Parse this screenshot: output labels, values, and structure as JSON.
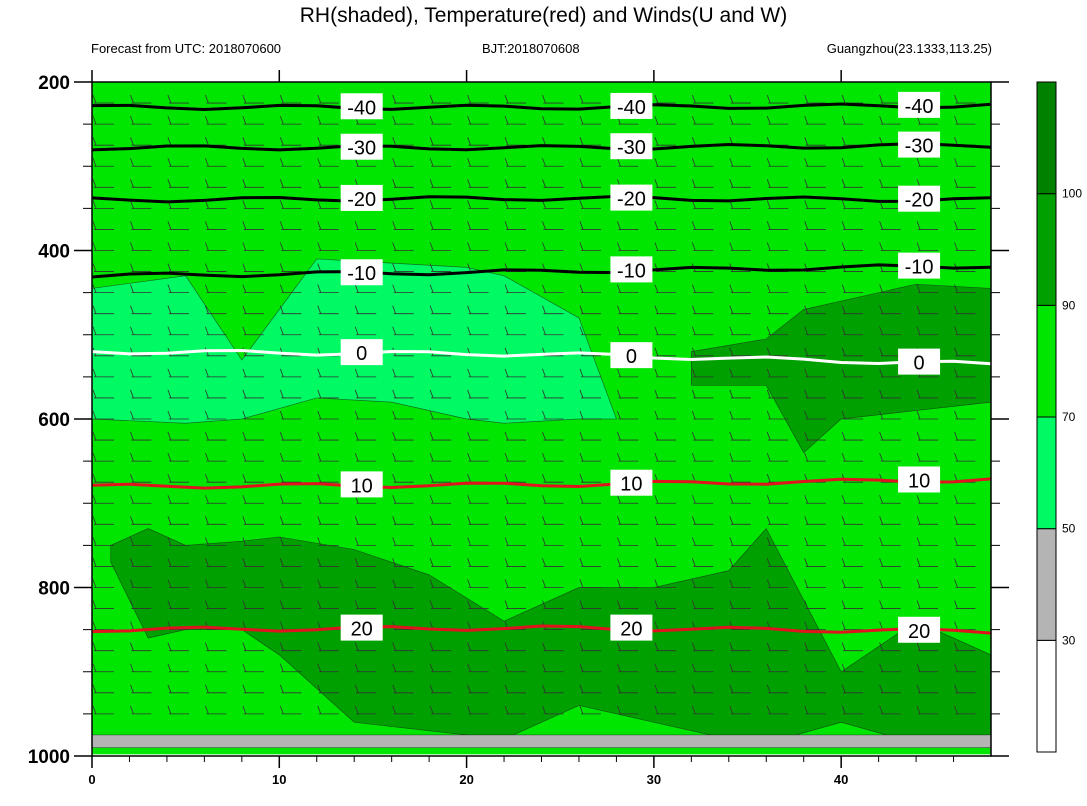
{
  "header": {
    "title": "RH(shaded), Temperature(red) and Winds(U and W)",
    "left_info": "Forecast from UTC: 2018070600",
    "center_info": "BJT:2018070608",
    "right_info": "Guangzhou(23.1333,113.25)"
  },
  "chart_data": {
    "type": "heatmap",
    "title": "RH(shaded), Temperature(red) and Winds(U and W)",
    "x": {
      "range": [
        0,
        48
      ],
      "ticks": [
        0,
        10,
        20,
        30,
        40
      ],
      "tick_labels": [
        "0",
        "10",
        "20",
        "30",
        "40"
      ]
    },
    "y": {
      "range": [
        1000,
        200
      ],
      "ticks": [
        200,
        400,
        600,
        800,
        1000
      ],
      "tick_labels": [
        "200",
        "400",
        "600",
        "800",
        "1000"
      ],
      "inverted": true
    },
    "colorbar": {
      "levels": [
        30,
        50,
        70,
        90,
        100
      ],
      "labels": [
        "30",
        "50",
        "70",
        "90",
        "100"
      ],
      "colors": [
        "#ffffff",
        "#b4b4b4",
        "#00fa64",
        "#00e600",
        "#00a000",
        "#008200"
      ]
    },
    "shading_layers": [
      {
        "level": "50-70",
        "color": "#00fa64",
        "x": [
          0,
          5,
          8,
          12,
          16,
          20,
          22,
          26,
          28
        ],
        "top": [
          445,
          430,
          530,
          410,
          415,
          420,
          430,
          480,
          600
        ],
        "bottom": [
          600,
          605,
          600,
          575,
          580,
          600,
          605,
          600,
          600
        ]
      },
      {
        "level": ">90",
        "color": "#00a000",
        "x": [
          1,
          3,
          5,
          8,
          10,
          14,
          18,
          22,
          26,
          30,
          34,
          36,
          40,
          44,
          48
        ],
        "top": [
          750,
          730,
          750,
          745,
          740,
          755,
          785,
          840,
          800,
          800,
          780,
          730,
          900,
          840,
          880
        ],
        "bottom": [
          770,
          860,
          850,
          850,
          880,
          960,
          970,
          980,
          940,
          960,
          980,
          985,
          960,
          985,
          990
        ]
      },
      {
        "level": ">90 upper",
        "color": "#00a000",
        "x": [
          32,
          36,
          38,
          40,
          44,
          48
        ],
        "top": [
          520,
          505,
          470,
          460,
          440,
          445
        ],
        "bottom": [
          560,
          560,
          640,
          600,
          590,
          580
        ]
      },
      {
        "level": "30-50",
        "color": "#b4b4b4",
        "x": [
          0,
          48
        ],
        "top": [
          975,
          975
        ],
        "bottom": [
          990,
          990
        ]
      }
    ],
    "temperature_contours": [
      {
        "level": -40,
        "label": "-40",
        "p": [
          230,
          230,
          228
        ]
      },
      {
        "level": -30,
        "label": "-30",
        "p": [
          278,
          278,
          275
        ]
      },
      {
        "level": -20,
        "label": "-20",
        "p": [
          340,
          338,
          340
        ]
      },
      {
        "level": -10,
        "label": "-10",
        "p": [
          430,
          425,
          418
        ]
      },
      {
        "level": 0,
        "label": "0",
        "p": [
          520,
          523,
          535
        ]
      },
      {
        "level": 10,
        "label": "10",
        "p": [
          680,
          678,
          672
        ]
      },
      {
        "level": 20,
        "label": "20",
        "p": [
          850,
          848,
          852
        ]
      }
    ],
    "wind_barb_levels": [
      225,
      250,
      275,
      300,
      325,
      350,
      375,
      400,
      425,
      450,
      475,
      500,
      525,
      550,
      575,
      600,
      625,
      650,
      675,
      700,
      725,
      750,
      775,
      800,
      825,
      850,
      875,
      900,
      925,
      950
    ],
    "wind_barb_times": [
      0,
      2,
      4,
      6,
      8,
      10,
      12,
      14,
      16,
      18,
      20,
      22,
      24,
      26,
      28,
      30,
      32,
      34,
      36,
      38,
      40,
      42,
      44,
      46,
      48
    ]
  }
}
